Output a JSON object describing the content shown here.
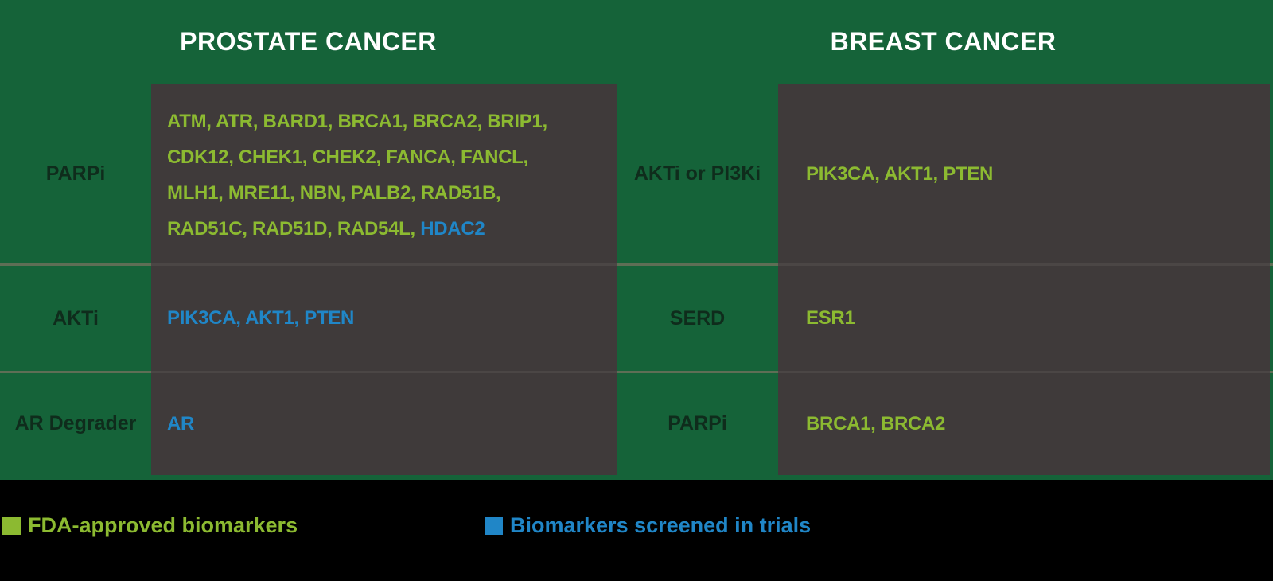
{
  "figure": {
    "left_header": "PROSTATE CANCER",
    "right_header": "BREAST CANCER"
  },
  "prostate": {
    "rows": [
      {
        "label": "PARPi",
        "genes_fda_lines": [
          "ATM, ATR, BARD1, BRCA1, BRCA2, BRIP1,",
          "CDK12, CHEK1, CHEK2, FANCA, FANCL,",
          "MLH1, MRE11, NBN, PALB2, RAD51B,",
          "RAD51C, RAD51D, RAD54L,"
        ],
        "genes_trial": "HDAC2"
      },
      {
        "label": "AKTi",
        "genes_trial": "PIK3CA, AKT1, PTEN"
      },
      {
        "label": "AR Degrader",
        "genes_trial": "AR"
      }
    ]
  },
  "breast": {
    "rows": [
      {
        "label": "AKTi or PI3Ki",
        "genes_fda": "PIK3CA, AKT1, PTEN"
      },
      {
        "label": "SERD",
        "genes_fda": "ESR1"
      },
      {
        "label": "PARPi",
        "genes_fda": "BRCA1, BRCA2"
      }
    ]
  },
  "legend": {
    "fda": {
      "label": "FDA-approved biomarkers",
      "color": "#8CBA31"
    },
    "trial": {
      "label": "Biomarkers screened in trials",
      "color": "#2086C7"
    }
  },
  "colors": {
    "background_green": "#156339",
    "panel_gray": "#3F3A3A",
    "fda_green": "#8CBA31",
    "trial_blue": "#2086C7",
    "header_text": "#FFFFFF",
    "label_text": "#0F2C1C",
    "footer_black": "#000000"
  }
}
